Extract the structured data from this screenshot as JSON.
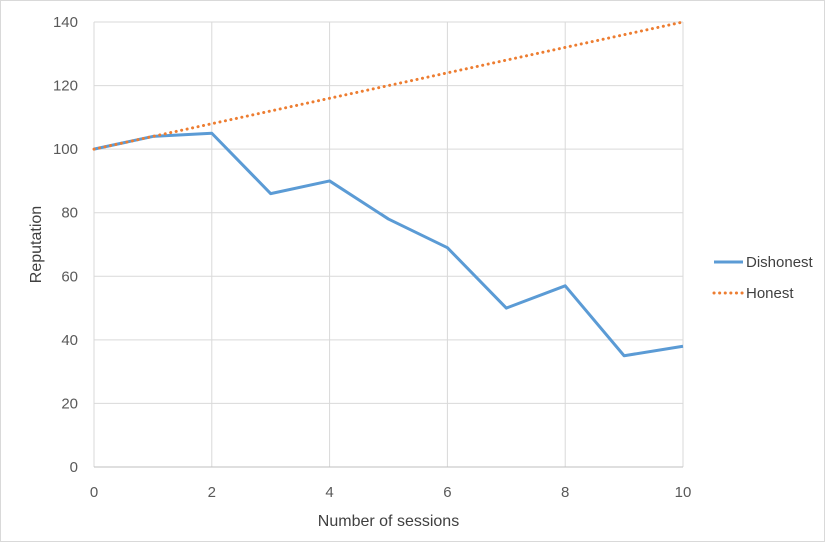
{
  "chart_data": {
    "type": "line",
    "title": "",
    "xlabel": "Number of sessions",
    "ylabel": "Reputation",
    "xlim": [
      0,
      10
    ],
    "ylim": [
      0,
      140
    ],
    "x_ticks": [
      0,
      2,
      4,
      6,
      8,
      10
    ],
    "y_ticks": [
      0,
      20,
      40,
      60,
      80,
      100,
      120,
      140
    ],
    "grid": true,
    "legend_position": "right",
    "series": [
      {
        "name": "Dishonest",
        "color": "#5B9BD5",
        "style": "solid",
        "x": [
          0,
          1,
          2,
          3,
          4,
          5,
          6,
          7,
          8,
          9,
          10
        ],
        "y": [
          100,
          104,
          105,
          86,
          90,
          78,
          69,
          50,
          57,
          35,
          38
        ]
      },
      {
        "name": "Honest",
        "color": "#ED7D31",
        "style": "dotted",
        "x": [
          0,
          1,
          2,
          3,
          4,
          5,
          6,
          7,
          8,
          9,
          10
        ],
        "y": [
          100,
          104,
          108,
          112,
          116,
          120,
          124,
          128,
          132,
          136,
          140
        ]
      }
    ]
  }
}
